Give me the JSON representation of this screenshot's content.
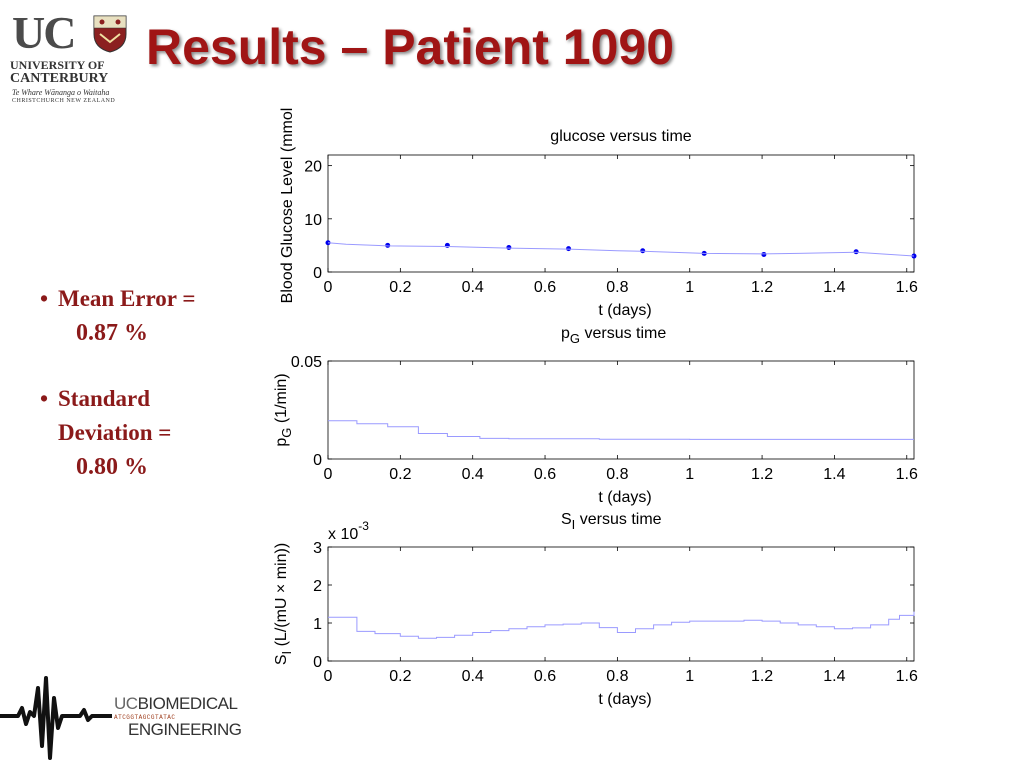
{
  "header": {
    "title": "Results – Patient 1090"
  },
  "uc_logo": {
    "letters": "UC",
    "name_line1": "UNIVERSITY OF",
    "name_line2": "CANTERBURY",
    "maori": "Te Whare Wānanga o Waitaha",
    "city": "CHRISTCHURCH NEW ZEALAND"
  },
  "bullets": [
    {
      "label": "Mean Error =",
      "value": "0.87 %"
    },
    {
      "label_line1": "Standard",
      "label_line2": "Deviation =",
      "value": "0.80 %"
    }
  ],
  "bio_logo": {
    "uc": "UC",
    "line1": "BIOMEDICAL",
    "line2": "ENGINEERING",
    "dna": "ATCGGTAGCGTATAC"
  },
  "colors": {
    "title": "#a01515",
    "bullet_text": "#8b1a1a",
    "marker": "#0000ee",
    "fit_line": "#9a9aff"
  },
  "chart_data": [
    {
      "type": "line",
      "title": "glucose versus time",
      "xlabel": "t (days)",
      "ylabel": "Blood Glucose Level (mmol",
      "xlim": [
        0,
        1.62
      ],
      "ylim": [
        0,
        22
      ],
      "xticks": [
        "0",
        "0.2",
        "0.4",
        "0.6",
        "0.8",
        "1",
        "1.2",
        "1.4",
        "1.6"
      ],
      "xtick_values": [
        0,
        0.2,
        0.4,
        0.6,
        0.8,
        1.0,
        1.2,
        1.4,
        1.6
      ],
      "yticks": [
        "0",
        "10",
        "20"
      ],
      "ytick_values": [
        0,
        10,
        20
      ],
      "series": [
        {
          "kind": "scatter",
          "x": [
            0.0,
            0.165,
            0.33,
            0.5,
            0.665,
            0.87,
            1.04,
            1.205,
            1.46,
            1.62
          ],
          "y": [
            5.5,
            5.0,
            5.0,
            4.6,
            4.4,
            4.0,
            3.5,
            3.3,
            3.8,
            3.0
          ]
        },
        {
          "kind": "line",
          "x": [
            0.0,
            0.05,
            0.165,
            0.33,
            0.5,
            0.665,
            0.8,
            0.87,
            1.0,
            1.04,
            1.205,
            1.3,
            1.46,
            1.55,
            1.62
          ],
          "y": [
            5.5,
            5.2,
            4.9,
            4.8,
            4.5,
            4.3,
            4.0,
            3.9,
            3.6,
            3.5,
            3.4,
            3.5,
            3.7,
            3.3,
            3.0
          ]
        }
      ]
    },
    {
      "type": "line",
      "title_main": "p",
      "title_sub": "G",
      "title_rest": " versus time",
      "xlabel": "t (days)",
      "ylabel_main": "p",
      "ylabel_sub": "G",
      "ylabel_rest": " (1/min)",
      "xlim": [
        0,
        1.62
      ],
      "ylim": [
        0,
        0.05
      ],
      "xticks": [
        "0",
        "0.2",
        "0.4",
        "0.6",
        "0.8",
        "1",
        "1.2",
        "1.4",
        "1.6"
      ],
      "xtick_values": [
        0,
        0.2,
        0.4,
        0.6,
        0.8,
        1.0,
        1.2,
        1.4,
        1.6
      ],
      "yticks": [
        "0",
        "0.05"
      ],
      "ytick_values": [
        0,
        0.05
      ],
      "series": [
        {
          "kind": "step",
          "x": [
            0.0,
            0.08,
            0.165,
            0.25,
            0.33,
            0.42,
            0.5,
            0.665,
            0.75,
            0.87,
            1.0,
            1.2,
            1.46,
            1.62
          ],
          "y": [
            0.0195,
            0.018,
            0.0165,
            0.013,
            0.0115,
            0.0105,
            0.0103,
            0.0103,
            0.0101,
            0.0101,
            0.01,
            0.01,
            0.01,
            0.01
          ]
        }
      ]
    },
    {
      "type": "line",
      "title_main": "S",
      "title_sub": "I",
      "title_rest": " versus time",
      "xlabel": "t (days)",
      "ylabel_main": "S",
      "ylabel_sub": "I",
      "ylabel_rest": " (L/(mU × min))",
      "exponent_prefix": "x 10",
      "exponent_sup": "-3",
      "xlim": [
        0,
        1.62
      ],
      "ylim": [
        0,
        3.0
      ],
      "xticks": [
        "0",
        "0.2",
        "0.4",
        "0.6",
        "0.8",
        "1",
        "1.2",
        "1.4",
        "1.6"
      ],
      "xtick_values": [
        0,
        0.2,
        0.4,
        0.6,
        0.8,
        1.0,
        1.2,
        1.4,
        1.6
      ],
      "yticks": [
        "0",
        "1",
        "2",
        "3"
      ],
      "ytick_values": [
        0,
        1,
        2,
        3
      ],
      "series": [
        {
          "kind": "step",
          "x": [
            0.0,
            0.08,
            0.13,
            0.2,
            0.25,
            0.3,
            0.35,
            0.4,
            0.45,
            0.5,
            0.55,
            0.6,
            0.65,
            0.7,
            0.75,
            0.8,
            0.85,
            0.9,
            0.95,
            1.0,
            1.05,
            1.1,
            1.15,
            1.2,
            1.25,
            1.3,
            1.35,
            1.4,
            1.45,
            1.5,
            1.55,
            1.58,
            1.62
          ],
          "y": [
            1.15,
            0.78,
            0.72,
            0.65,
            0.6,
            0.62,
            0.68,
            0.75,
            0.8,
            0.85,
            0.9,
            0.95,
            0.97,
            1.0,
            0.88,
            0.75,
            0.85,
            0.95,
            1.02,
            1.05,
            1.05,
            1.05,
            1.07,
            1.05,
            1.0,
            0.95,
            0.9,
            0.85,
            0.87,
            0.95,
            1.1,
            1.2,
            1.3
          ]
        }
      ]
    }
  ]
}
